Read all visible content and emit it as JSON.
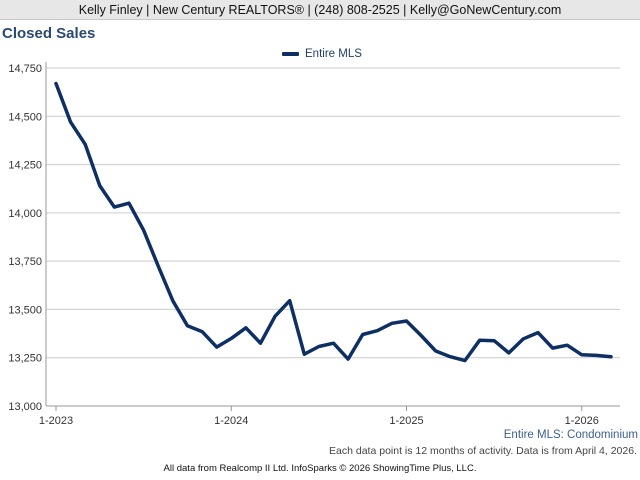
{
  "header": {
    "contact_line": "Kelly Finley | New Century REALTORS® | (248) 808-2525 | Kelly@GoNewCentury.com"
  },
  "chart_data": {
    "type": "line",
    "title": "Closed Sales",
    "legend": {
      "label": "Entire MLS",
      "placement": "top-center"
    },
    "series_label": "Entire MLS: Condominium",
    "y_ticks": [
      "14,750",
      "14,500",
      "14,250",
      "14,000",
      "13,750",
      "13,500",
      "13,250",
      "13,000"
    ],
    "x_ticks": [
      "1-2023",
      "1-2024",
      "1-2025",
      "1-2026"
    ],
    "ylim": [
      13000,
      14750
    ],
    "xlim": [
      "2023-01",
      "2026-03"
    ],
    "grid": "horizontal",
    "line_color": "#0d2f64",
    "series": [
      {
        "name": "Entire MLS",
        "x": [
          "2023-01",
          "2023-02",
          "2023-03",
          "2023-04",
          "2023-05",
          "2023-06",
          "2023-07",
          "2023-08",
          "2023-09",
          "2023-10",
          "2023-11",
          "2023-12",
          "2024-01",
          "2024-02",
          "2024-03",
          "2024-04",
          "2024-05",
          "2024-06",
          "2024-07",
          "2024-08",
          "2024-09",
          "2024-10",
          "2024-11",
          "2024-12",
          "2025-01",
          "2025-02",
          "2025-03",
          "2025-04",
          "2025-05",
          "2025-06",
          "2025-07",
          "2025-08",
          "2025-09",
          "2025-10",
          "2025-11",
          "2025-12",
          "2026-01",
          "2026-02",
          "2026-03"
        ],
        "values": [
          14670,
          14470,
          14355,
          14140,
          14030,
          14050,
          13910,
          13725,
          13545,
          13415,
          13385,
          13305,
          13350,
          13405,
          13325,
          13465,
          13545,
          13268,
          13308,
          13325,
          13243,
          13370,
          13390,
          13428,
          13440,
          13365,
          13285,
          13255,
          13235,
          13340,
          13338,
          13275,
          13348,
          13380,
          13300,
          13315,
          13265,
          13262,
          13255
        ]
      }
    ]
  },
  "notes": {
    "data_point_note": "Each data point is 12 months of activity. Data is from April 4, 2026.",
    "footer": "All data from Realcomp II Ltd. InfoSparks © 2026 ShowingTime Plus, LLC."
  }
}
